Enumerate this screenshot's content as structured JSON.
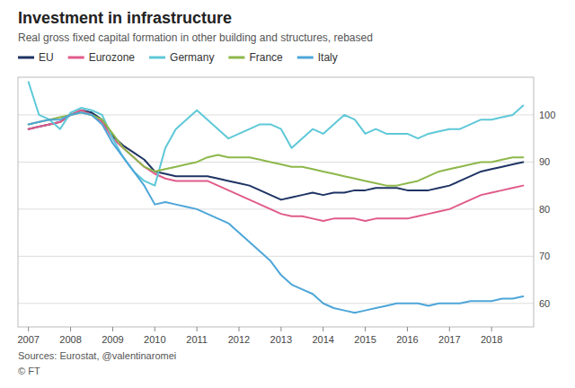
{
  "chart_data": {
    "type": "line",
    "title": "Investment in infrastructure",
    "subtitle": "Real gross fixed capital formation in other building and structures, rebased",
    "annotations": [
      "Sources: Eurostat, @valentinaromei",
      "© FT"
    ],
    "x": [
      2007,
      2007.25,
      2007.5,
      2007.75,
      2008,
      2008.25,
      2008.5,
      2008.75,
      2009,
      2009.25,
      2009.5,
      2009.75,
      2010,
      2010.25,
      2010.5,
      2010.75,
      2011,
      2011.25,
      2011.5,
      2011.75,
      2012,
      2012.25,
      2012.5,
      2012.75,
      2013,
      2013.25,
      2013.5,
      2013.75,
      2014,
      2014.25,
      2014.5,
      2014.75,
      2015,
      2015.25,
      2015.5,
      2015.75,
      2016,
      2016.25,
      2016.5,
      2016.75,
      2017,
      2017.25,
      2017.5,
      2017.75,
      2018,
      2018.25,
      2018.5,
      2018.75
    ],
    "xlim": [
      2006.75,
      2019.0
    ],
    "xticks": [
      2007,
      2008,
      2009,
      2010,
      2011,
      2012,
      2013,
      2014,
      2015,
      2016,
      2017,
      2018
    ],
    "ylim": [
      55,
      108
    ],
    "yticks": [
      60,
      70,
      80,
      90,
      100
    ],
    "grid": true,
    "legend": "top",
    "series": [
      {
        "name": "EU",
        "color": "#1f3464",
        "values": [
          97.0,
          97.5,
          98.0,
          98.5,
          100.0,
          101.0,
          100.5,
          99.0,
          95.5,
          93.5,
          92.0,
          90.5,
          88.0,
          87.5,
          87.0,
          87.0,
          87.0,
          87.0,
          86.5,
          86.0,
          85.5,
          85.0,
          84.0,
          83.0,
          82.0,
          82.5,
          83.0,
          83.5,
          83.0,
          83.5,
          83.5,
          84.0,
          84.0,
          84.5,
          84.5,
          84.5,
          84.0,
          84.0,
          84.0,
          84.5,
          85.0,
          86.0,
          87.0,
          88.0,
          88.5,
          89.0,
          89.5,
          90.0
        ]
      },
      {
        "name": "Eurozone",
        "color": "#e05b8b",
        "values": [
          97.0,
          97.5,
          98.0,
          98.5,
          100.0,
          101.0,
          100.0,
          98.5,
          95.0,
          93.0,
          91.0,
          89.0,
          87.5,
          86.5,
          86.0,
          86.0,
          86.0,
          86.0,
          85.0,
          84.0,
          83.0,
          82.0,
          81.0,
          80.0,
          79.0,
          78.5,
          78.5,
          78.0,
          77.5,
          78.0,
          78.0,
          78.0,
          77.5,
          78.0,
          78.0,
          78.0,
          78.0,
          78.5,
          79.0,
          79.5,
          80.0,
          81.0,
          82.0,
          83.0,
          83.5,
          84.0,
          84.5,
          85.0
        ]
      },
      {
        "name": "Germany",
        "color": "#5ec8d8",
        "values": [
          107.0,
          100.0,
          99.0,
          97.0,
          100.5,
          101.5,
          101.0,
          100.0,
          95.0,
          91.0,
          88.0,
          86.0,
          85.0,
          93.0,
          97.0,
          99.0,
          101.0,
          99.0,
          97.0,
          95.0,
          96.0,
          97.0,
          98.0,
          98.0,
          97.0,
          93.0,
          95.0,
          97.0,
          96.0,
          98.0,
          100.0,
          99.0,
          96.0,
          97.0,
          96.0,
          96.0,
          96.0,
          95.0,
          96.0,
          96.5,
          97.0,
          97.0,
          98.0,
          99.0,
          99.0,
          99.5,
          100.0,
          102.0
        ]
      },
      {
        "name": "France",
        "color": "#8db84a",
        "values": [
          98.0,
          98.5,
          99.0,
          99.5,
          100.0,
          100.5,
          100.0,
          99.0,
          96.0,
          93.0,
          91.0,
          89.0,
          88.0,
          88.5,
          89.0,
          89.5,
          90.0,
          91.0,
          91.5,
          91.0,
          91.0,
          91.0,
          90.5,
          90.0,
          89.5,
          89.0,
          89.0,
          88.5,
          88.0,
          87.5,
          87.0,
          86.5,
          86.0,
          85.5,
          85.0,
          85.0,
          85.5,
          86.0,
          87.0,
          88.0,
          88.5,
          89.0,
          89.5,
          90.0,
          90.0,
          90.5,
          91.0,
          91.0
        ]
      },
      {
        "name": "Italy",
        "color": "#4da6d8",
        "values": [
          98.0,
          98.5,
          99.0,
          99.0,
          100.0,
          100.5,
          100.0,
          98.0,
          94.0,
          91.0,
          88.0,
          85.0,
          81.0,
          81.5,
          81.0,
          80.5,
          80.0,
          79.0,
          78.0,
          77.0,
          75.0,
          73.0,
          71.0,
          69.0,
          66.0,
          64.0,
          63.0,
          62.0,
          60.0,
          59.0,
          58.5,
          58.0,
          58.5,
          59.0,
          59.5,
          60.0,
          60.0,
          60.0,
          59.5,
          60.0,
          60.0,
          60.0,
          60.5,
          60.5,
          60.5,
          61.0,
          61.0,
          61.5
        ]
      }
    ]
  }
}
